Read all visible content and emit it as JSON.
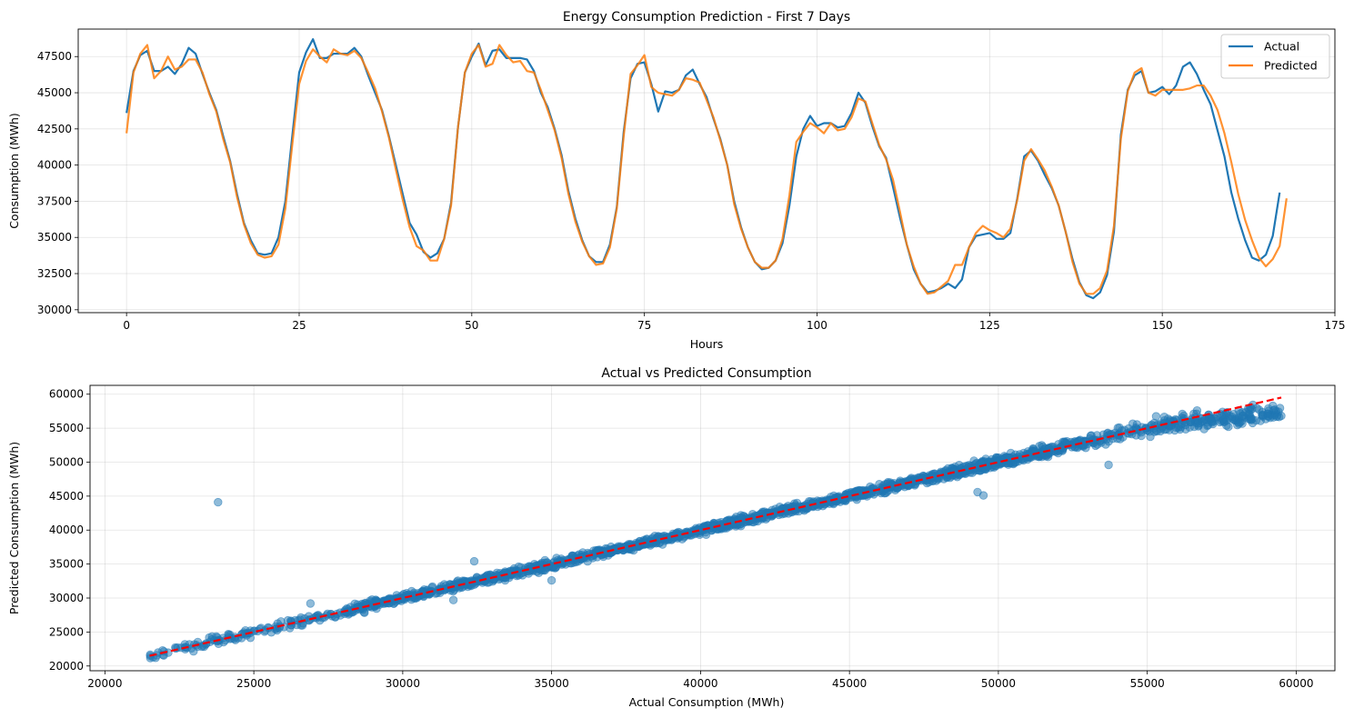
{
  "chart_data": [
    {
      "type": "line",
      "title": "Energy Consumption Prediction - First 7 Days",
      "xlabel": "Hours",
      "ylabel": "Consumption (MWh)",
      "xlim": [
        -7,
        175
      ],
      "ylim": [
        29800,
        49400
      ],
      "xticks": [
        0,
        25,
        50,
        75,
        100,
        125,
        150,
        175
      ],
      "yticks": [
        30000,
        32500,
        35000,
        37500,
        40000,
        42500,
        45000,
        47500
      ],
      "grid": true,
      "legend": "top-right",
      "series": [
        {
          "name": "Actual",
          "color": "#1f77b4",
          "values": [
            43600,
            46500,
            47600,
            47900,
            46500,
            46500,
            46800,
            46300,
            47000,
            48100,
            47700,
            46300,
            45000,
            43800,
            42000,
            40300,
            38000,
            36000,
            34800,
            33900,
            33800,
            33900,
            35000,
            37500,
            42000,
            46400,
            47800,
            48700,
            47400,
            47400,
            47700,
            47700,
            47700,
            48100,
            47500,
            46200,
            45000,
            43800,
            42000,
            40000,
            38000,
            36000,
            35200,
            34000,
            33600,
            33900,
            34900,
            37400,
            42600,
            46400,
            47500,
            48400,
            46900,
            47900,
            48000,
            47400,
            47400,
            47400,
            47300,
            46500,
            45000,
            44000,
            42500,
            40700,
            38200,
            36300,
            34800,
            33700,
            33300,
            33300,
            34500,
            37100,
            42300,
            46000,
            47000,
            47100,
            45600,
            43700,
            45100,
            45000,
            45200,
            46200,
            46600,
            45600,
            44700,
            43200,
            41800,
            40000,
            37500,
            35700,
            34300,
            33300,
            32800,
            32900,
            33400,
            34600,
            37200,
            40600,
            42500,
            43400,
            42700,
            42900,
            42900,
            42600,
            42700,
            43600,
            45000,
            44300,
            42700,
            41300,
            40500,
            38500,
            36400,
            34500,
            32800,
            31800,
            31200,
            31300,
            31500,
            31800,
            31500,
            32100,
            34300,
            35100,
            35200,
            35300,
            34900,
            34900,
            35300,
            37700,
            40600,
            41000,
            40300,
            39300,
            38400,
            37200,
            35400,
            33500,
            31900,
            31000,
            30800,
            31200,
            32400,
            35400,
            42100,
            45200,
            46200,
            46500,
            45000,
            45100,
            45400,
            44900,
            45500,
            46800,
            47100,
            46300,
            45200,
            44200,
            42400,
            40600,
            38100,
            36300,
            34800,
            33600,
            33400,
            33800,
            35100,
            38100
          ]
        },
        {
          "name": "Predicted",
          "color": "#ff7f0e",
          "values": [
            42200,
            46400,
            47700,
            48300,
            46000,
            46500,
            47500,
            46600,
            46800,
            47300,
            47300,
            46400,
            44900,
            43700,
            41800,
            40200,
            37800,
            35900,
            34600,
            33800,
            33600,
            33700,
            34500,
            37000,
            41400,
            45600,
            47200,
            48000,
            47500,
            47100,
            48000,
            47700,
            47600,
            47900,
            47400,
            46400,
            45300,
            43700,
            41900,
            39700,
            37600,
            35700,
            34400,
            34100,
            33400,
            33400,
            34900,
            37200,
            42600,
            46400,
            47700,
            48300,
            46800,
            47000,
            48300,
            47600,
            47100,
            47200,
            46500,
            46400,
            45200,
            43800,
            42400,
            40500,
            38000,
            36100,
            34700,
            33700,
            33100,
            33200,
            34300,
            37000,
            42000,
            46300,
            46900,
            47600,
            45400,
            45000,
            44900,
            44800,
            45200,
            46000,
            45900,
            45700,
            44500,
            43300,
            41700,
            40000,
            37300,
            35600,
            34300,
            33300,
            32900,
            32900,
            33400,
            34900,
            37900,
            41600,
            42300,
            42900,
            42600,
            42200,
            42900,
            42400,
            42500,
            43300,
            44600,
            44400,
            42900,
            41400,
            40400,
            39000,
            36800,
            34500,
            33000,
            31800,
            31100,
            31200,
            31600,
            32000,
            33100,
            33100,
            34300,
            35300,
            35800,
            35500,
            35300,
            35000,
            35600,
            37600,
            40300,
            41100,
            40400,
            39600,
            38500,
            37200,
            35400,
            33300,
            31800,
            31100,
            31100,
            31500,
            32700,
            35800,
            41800,
            45100,
            46400,
            46700,
            45000,
            44800,
            45200,
            45200,
            45200,
            45200,
            45300,
            45500,
            45500,
            44800,
            43800,
            42200,
            40200,
            38000,
            36200,
            34800,
            33600,
            33000,
            33500,
            34400,
            37700
          ]
        }
      ]
    },
    {
      "type": "scatter",
      "title": "Actual vs Predicted Consumption",
      "xlabel": "Actual Consumption (MWh)",
      "ylabel": "Predicted Consumption (MWh)",
      "xlim": [
        19500,
        61300
      ],
      "ylim": [
        19300,
        61300
      ],
      "xticks": [
        20000,
        25000,
        30000,
        35000,
        40000,
        45000,
        50000,
        55000,
        60000
      ],
      "yticks": [
        20000,
        25000,
        30000,
        35000,
        40000,
        45000,
        50000,
        55000,
        60000
      ],
      "grid": true,
      "point_color": "#1f77b4",
      "reference_line": {
        "color": "#ff0000",
        "style": "dashed",
        "from": [
          21500,
          21500
        ],
        "to": [
          59500,
          59500
        ]
      },
      "outliers": [
        {
          "x": 23800,
          "y": 44100
        },
        {
          "x": 53700,
          "y": 49600
        },
        {
          "x": 49300,
          "y": 45600
        },
        {
          "x": 49500,
          "y": 45100
        },
        {
          "x": 35000,
          "y": 32600
        },
        {
          "x": 32400,
          "y": 35400
        },
        {
          "x": 31700,
          "y": 29700
        },
        {
          "x": 21700,
          "y": 21200
        },
        {
          "x": 59500,
          "y": 56800
        },
        {
          "x": 26900,
          "y": 29200
        }
      ]
    }
  ]
}
